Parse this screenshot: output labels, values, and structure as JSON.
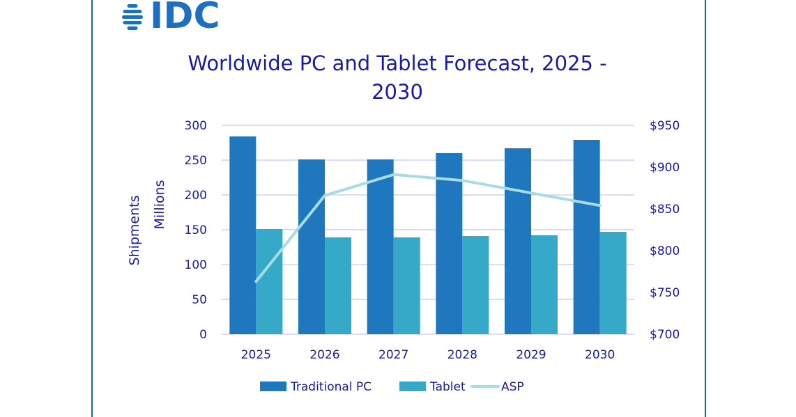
{
  "brand": {
    "logo_text": "IDC",
    "logo_color": "#1f6fc0"
  },
  "chart_data": {
    "type": "bar",
    "title_lines": [
      "Worldwide PC and Tablet Forecast, 2025 -",
      "2030"
    ],
    "categories": [
      "2025",
      "2026",
      "2027",
      "2028",
      "2029",
      "2030"
    ],
    "series": [
      {
        "name": "Traditional PC",
        "kind": "bar",
        "axis": "left",
        "color": "#1f77be",
        "values": [
          284,
          251,
          251,
          260,
          267,
          279
        ]
      },
      {
        "name": "Tablet",
        "kind": "bar",
        "axis": "left",
        "color": "#36a9c8",
        "values": [
          151,
          139,
          139,
          141,
          142,
          147
        ]
      },
      {
        "name": "ASP",
        "kind": "line",
        "axis": "right",
        "color": "#a7dbe6",
        "values": [
          763,
          866,
          891,
          884,
          869,
          854
        ]
      }
    ],
    "ylabel_lines": [
      "Shipments",
      "Millions"
    ],
    "ylim": [
      0,
      300
    ],
    "y_ticks": [
      "0",
      "50",
      "100",
      "150",
      "200",
      "250",
      "300"
    ],
    "y2lim": [
      700,
      950
    ],
    "y2_ticks": [
      "$700",
      "$750",
      "$800",
      "$850",
      "$900",
      "$950"
    ],
    "grid": true,
    "gridline_color": "#c9c6ee",
    "legend_position": "bottom"
  }
}
